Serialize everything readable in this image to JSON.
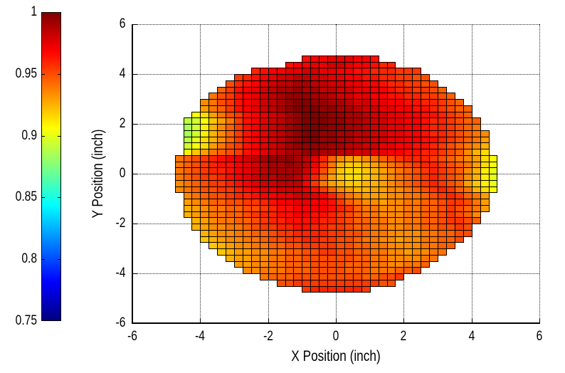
{
  "figure": {
    "background": "#ffffff"
  },
  "axes": {
    "xlabel": "X Position (inch)",
    "ylabel": "Y Position (inch)",
    "xlim": [
      -6,
      6
    ],
    "ylim": [
      -6,
      6
    ],
    "xticks": [
      -6,
      -4,
      -2,
      0,
      2,
      4,
      6
    ],
    "yticks": [
      -6,
      -4,
      -2,
      0,
      2,
      4,
      6
    ],
    "xtick_labels": [
      "-6",
      "-4",
      "-2",
      "0",
      "2",
      "4",
      "6"
    ],
    "ytick_labels": [
      "-6",
      "-4",
      "-2",
      "0",
      "2",
      "4",
      "6"
    ],
    "grid": true
  },
  "colorbar": {
    "min": 0.75,
    "max": 1.0,
    "tick_values": [
      1,
      0.95,
      0.9,
      0.85,
      0.8,
      0.75
    ],
    "tick_labels": [
      "1",
      "0.95",
      "0.9",
      "0.85",
      "0.8",
      "0.75"
    ],
    "colormap": "jet"
  },
  "chart_data": {
    "type": "heatmap",
    "title": "",
    "xlabel": "X Position (inch)",
    "ylabel": "Y Position (inch)",
    "xlim": [
      -6,
      6
    ],
    "ylim": [
      -6,
      6
    ],
    "grid_on": true,
    "colormap": "jet",
    "color_range": [
      0.75,
      1.0
    ],
    "cell_size_inch": 0.25,
    "value_encoding": {
      "first_char": "a",
      "base": 0.88,
      "step": 0.005,
      "note": "value = base + (char-'a')*step; y is top edge of row, x is left edge of first cell"
    },
    "rows": [
      {
        "y": 4.75,
        "x": -1.0,
        "v": "rsstttssr"
      },
      {
        "y": 4.5,
        "x": -1.5,
        "v": "rssttuutssrqq"
      },
      {
        "y": 4.25,
        "x": -2.5,
        "v": "qrssttuuttssrrqqqppp"
      },
      {
        "y": 4.0,
        "x": -3.0,
        "v": "pqrstuuvvuuttssrrqqppoo"
      },
      {
        "y": 3.75,
        "x": -3.25,
        "v": "oqrstuvvwwvvuuttssrqqppoo"
      },
      {
        "y": 3.5,
        "x": -3.5,
        "v": "nprstuvwwxwwvvuuttssrqqppon"
      },
      {
        "y": 3.25,
        "x": -3.75,
        "v": "moprstuvwxxxwwvuuttssrrqqppon"
      },
      {
        "y": 3.0,
        "x": -4.0,
        "v": "lmoprstuvwxyyxxwwvuuttssrrqqpon"
      },
      {
        "y": 2.75,
        "x": -4.0,
        "v": "kmnprstuvwxyyyxxwwvuuttssrrqponn"
      },
      {
        "y": 2.5,
        "x": -4.25,
        "v": "fhkmoprstuvwxyyyxxwwvuuttssrrqpon"
      },
      {
        "y": 2.25,
        "x": -4.5,
        "v": "cdfikmprstuvwxyyyxxwwvuuttssrqqponn"
      },
      {
        "y": 2.0,
        "x": -4.5,
        "v": "bdgjlnprstuvwxyyyxxwwvuuttssrqqponm"
      },
      {
        "y": 1.75,
        "x": -4.5,
        "v": "bdgjlnprstuvwxyyxxwwvvuuttssrqqponml"
      },
      {
        "y": 1.5,
        "x": -4.5,
        "v": "cehjlnprstuvwxyyxxwwvvuuttssrrqponmk"
      },
      {
        "y": 1.25,
        "x": -4.5,
        "v": "dfhkmoprstuvwxxxxwwvvuuttssrrqponmlj"
      },
      {
        "y": 1.0,
        "x": -4.5,
        "v": "gikmnoprstuvwwxxwwvvuuttssrrqqponljh"
      },
      {
        "y": 0.75,
        "x": -4.75,
        "v": "mnopqrstuvwxxxwvtqnlkklmnopqqqponmlkhf"
      },
      {
        "y": 0.5,
        "x": -4.75,
        "v": "mnopqrrstuvwwxwvspmjiijklmnopqqponmkhf"
      },
      {
        "y": 0.25,
        "x": -4.75,
        "v": "mnopqqrstuvwwwwurolihhijklmnopqponljge"
      },
      {
        "y": 0.0,
        "x": -4.75,
        "v": "mnoppqrstuvvwwvtqnkihhijklmnopqponljge"
      },
      {
        "y": -0.25,
        "x": -4.75,
        "v": "lmnoppqrstuuvvvspmkjiijjklmnopqponkige"
      },
      {
        "y": -0.5,
        "x": -4.75,
        "v": "lmnooppqrsttuuutrpnlkjjkkllmnopqpnmjhf"
      },
      {
        "y": -0.75,
        "x": -4.5,
        "v": "lmnoopqqrssttuutsqomlkkkllmmnopqpnmk"
      },
      {
        "y": -1.0,
        "x": -4.5,
        "v": "klmnnooppqrssttssrpnmllkllmmnnoppomk"
      },
      {
        "y": -1.25,
        "x": -4.5,
        "v": "jklmmnnoopqrrssssrqpnmmlllmmnnoponmk"
      },
      {
        "y": -1.5,
        "x": -4.5,
        "v": "jklmmnnopqqrrssrrqponmmlllmmnnoponl"
      },
      {
        "y": -1.75,
        "x": -4.25,
        "v": "jklmmnnopqqrrrrqqponnmmllmmnnoppon"
      },
      {
        "y": -2.0,
        "x": -4.25,
        "v": "jkllmmnoppqqrrqqpponnmmllmmnnoopo"
      },
      {
        "y": -2.25,
        "x": -4.0,
        "v": "jkllmmnnoppqqqqppoonmmllllmmnnoo"
      },
      {
        "y": -2.5,
        "x": -4.0,
        "v": "ijkllmmnooppqqppoonmmllkllmmnno"
      },
      {
        "y": -2.75,
        "x": -3.75,
        "v": "ijkllmmnnooppppoonnmmllllmmnn"
      },
      {
        "y": -3.0,
        "x": -3.5,
        "v": "ijkkllmmnnooppoonnmmllkllmm"
      },
      {
        "y": -3.25,
        "x": -3.25,
        "v": "jkkllmmnnoooooonnmmllllmm"
      },
      {
        "y": -3.5,
        "x": -3.0,
        "v": "kkllmmnnnoooonnnmmllmmn"
      },
      {
        "y": -3.75,
        "x": -2.75,
        "v": "llmmmnnnoooonnnmmmnno"
      },
      {
        "y": -4.0,
        "x": -2.25,
        "v": "mnnnoooooooonnoop"
      },
      {
        "y": -4.25,
        "x": -1.75,
        "v": "ooppppppppppoo"
      },
      {
        "y": -4.5,
        "x": -1.0,
        "v": "pqqqqqqp"
      }
    ]
  }
}
